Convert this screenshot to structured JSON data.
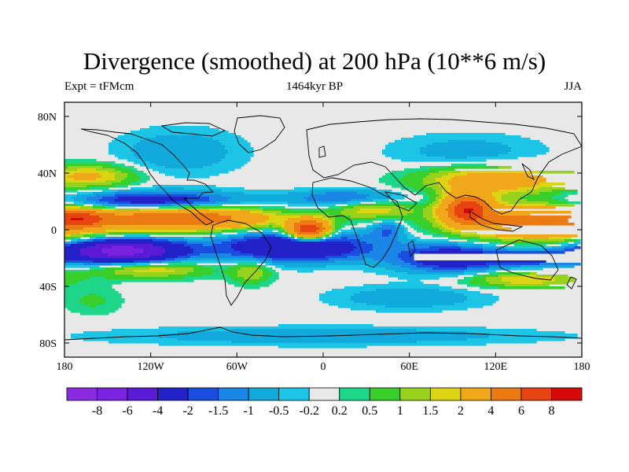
{
  "title": "Divergence (smoothed) at 200 hPa (10**6 m/s)",
  "left_string": "Expt = tFMcm",
  "center_string": "1464kyr BP",
  "right_string": "JJA",
  "map": {
    "projection": "cylindrical-equidistant",
    "lon_range": [
      -180,
      180
    ],
    "lat_range": [
      -90,
      90
    ],
    "y_ticks": [
      {
        "lat": 80,
        "label": "80N"
      },
      {
        "lat": 40,
        "label": "40N"
      },
      {
        "lat": 0,
        "label": "0"
      },
      {
        "lat": -40,
        "label": "40S"
      },
      {
        "lat": -80,
        "label": "80S"
      }
    ],
    "x_ticks": [
      {
        "lon": -180,
        "label": "180"
      },
      {
        "lon": -120,
        "label": "120W"
      },
      {
        "lon": -60,
        "label": "60W"
      },
      {
        "lon": 0,
        "label": "0"
      },
      {
        "lon": 60,
        "label": "60E"
      },
      {
        "lon": 120,
        "label": "120E"
      },
      {
        "lon": 180,
        "label": "180"
      }
    ],
    "background": "#e8e8e8"
  },
  "colorbar": {
    "colors": [
      "#8a2be2",
      "#7a22e0",
      "#5b1ad6",
      "#2222c8",
      "#1a4ee0",
      "#1a86e6",
      "#12aadc",
      "#1cc4e6",
      "#e8e8e8",
      "#1ed68a",
      "#39cf2b",
      "#98d21c",
      "#dcd412",
      "#f0a81a",
      "#ec7a12",
      "#e84412",
      "#d60a0a"
    ],
    "labels": [
      "-8",
      "-6",
      "-4",
      "-2",
      "-1.5",
      "-1",
      "-0.5",
      "-0.2",
      "0.2",
      "0.5",
      "1",
      "1.5",
      "2",
      "4",
      "6",
      "8"
    ]
  },
  "chart_data": {
    "type": "heatmap",
    "title": "Divergence (smoothed) at 200 hPa (10**6 m/s)",
    "subtitle_left": "Expt = tFMcm",
    "subtitle_center": "1464kyr BP",
    "subtitle_right": "JJA",
    "units": "10**6 m/s",
    "levels": [
      -8,
      -6,
      -4,
      -2,
      -1.5,
      -1,
      -0.5,
      -0.2,
      0.2,
      0.5,
      1,
      1.5,
      2,
      4,
      6,
      8
    ],
    "blobs": [
      {
        "lon": -100,
        "lat": 8,
        "r_lon": 60,
        "r_lat": 8,
        "value": 6
      },
      {
        "lon": -10,
        "lat": 0,
        "r_lon": 14,
        "r_lat": 7,
        "value": 8
      },
      {
        "lon": 150,
        "lat": 5,
        "r_lon": 55,
        "r_lat": 12,
        "value": 5
      },
      {
        "lon": 100,
        "lat": 15,
        "r_lon": 16,
        "r_lat": 10,
        "value": 7
      },
      {
        "lon": -170,
        "lat": 8,
        "r_lon": 18,
        "r_lat": 6,
        "value": 4
      },
      {
        "lon": -160,
        "lat": 38,
        "r_lon": 30,
        "r_lat": 8,
        "value": 2
      },
      {
        "lon": 120,
        "lat": 35,
        "r_lon": 50,
        "r_lat": 10,
        "value": 3
      },
      {
        "lon": 35,
        "lat": 15,
        "r_lon": 30,
        "r_lat": 8,
        "value": 2
      },
      {
        "lon": -120,
        "lat": -28,
        "r_lon": 40,
        "r_lat": 6,
        "value": 2
      },
      {
        "lon": -50,
        "lat": -30,
        "r_lon": 14,
        "r_lat": 8,
        "value": 1.5
      },
      {
        "lon": 140,
        "lat": -35,
        "r_lon": 40,
        "r_lat": 6,
        "value": 2
      },
      {
        "lon": -120,
        "lat": 20,
        "r_lon": 60,
        "r_lat": 7,
        "value": -3
      },
      {
        "lon": 20,
        "lat": 22,
        "r_lon": 40,
        "r_lat": 6,
        "value": -2
      },
      {
        "lon": -140,
        "lat": -15,
        "r_lon": 40,
        "r_lat": 8,
        "value": -7
      },
      {
        "lon": -20,
        "lat": -12,
        "r_lon": 50,
        "r_lat": 10,
        "value": -4
      },
      {
        "lon": 90,
        "lat": -20,
        "r_lon": 40,
        "r_lat": 10,
        "value": -3
      },
      {
        "lon": 150,
        "lat": -20,
        "r_lon": 30,
        "r_lat": 6,
        "value": -2
      },
      {
        "lon": 45,
        "lat": 0,
        "r_lon": 12,
        "r_lat": 8,
        "value": -1.5
      },
      {
        "lon": -100,
        "lat": 55,
        "r_lon": 40,
        "r_lat": 15,
        "value": -1
      },
      {
        "lon": 100,
        "lat": 55,
        "r_lon": 50,
        "r_lat": 12,
        "value": -0.8
      },
      {
        "lon": 0,
        "lat": -75,
        "r_lon": 140,
        "r_lat": 6,
        "value": -1
      },
      {
        "lon": 60,
        "lat": -48,
        "r_lon": 50,
        "r_lat": 8,
        "value": -1
      },
      {
        "lon": -160,
        "lat": -50,
        "r_lon": 20,
        "r_lat": 10,
        "value": 0.6
      }
    ]
  }
}
